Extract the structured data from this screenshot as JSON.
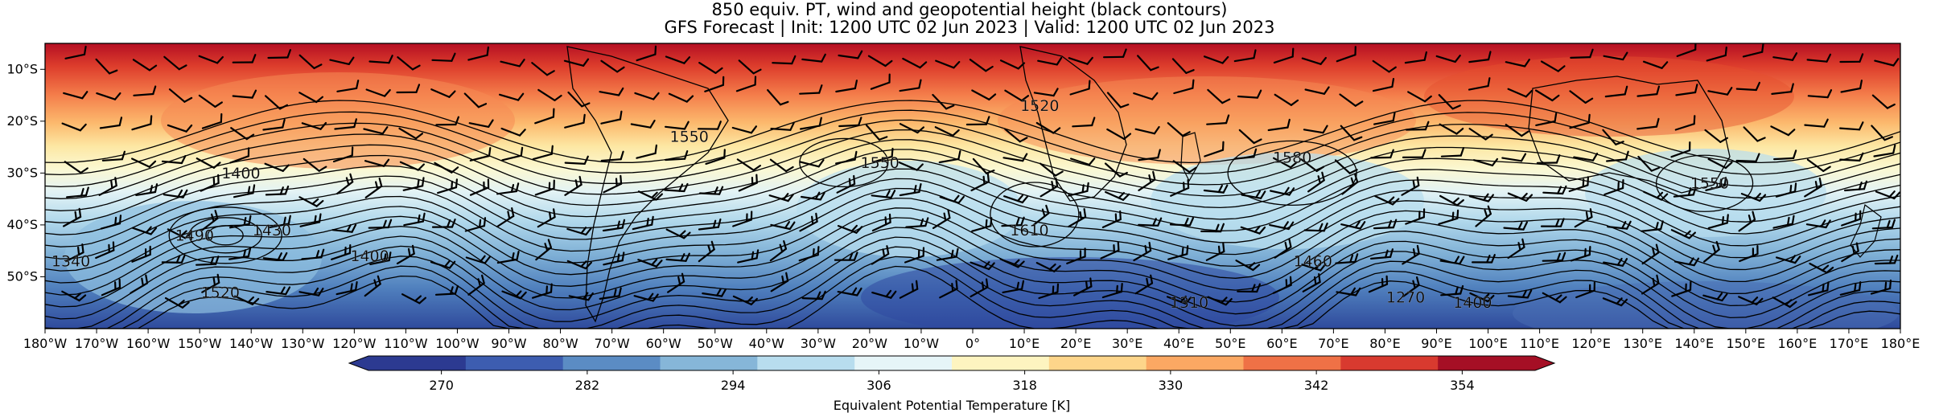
{
  "title": {
    "line1": "850 equiv. PT, wind and geopotential height (black contours)",
    "line2": "GFS Forecast | Init: 1200 UTC 02 Jun 2023 | Valid: 1200 UTC 02 Jun 2023"
  },
  "map": {
    "projection": "PlateCarree",
    "lon_range": [
      -180,
      180
    ],
    "lat_range": [
      -60,
      -5
    ],
    "lat_ticks": [
      "10°S",
      "20°S",
      "30°S",
      "40°S",
      "50°S"
    ],
    "lon_ticks": [
      "180°W",
      "170°W",
      "160°W",
      "150°W",
      "140°W",
      "130°W",
      "120°W",
      "110°W",
      "100°W",
      "90°W",
      "80°W",
      "70°W",
      "60°W",
      "50°W",
      "40°W",
      "30°W",
      "20°W",
      "10°W",
      "0°",
      "10°E",
      "20°E",
      "30°E",
      "40°E",
      "50°E",
      "60°E",
      "70°E",
      "80°E",
      "90°E",
      "100°E",
      "110°E",
      "120°E",
      "130°E",
      "140°E",
      "150°E",
      "160°E",
      "170°E",
      "180°E"
    ],
    "contour_labels": [
      {
        "text": "1400",
        "lon": -142,
        "lat": -31
      },
      {
        "text": "1430",
        "lon": -136,
        "lat": -42
      },
      {
        "text": "1490",
        "lon": -151,
        "lat": -43
      },
      {
        "text": "1340",
        "lon": -175,
        "lat": -48
      },
      {
        "text": "1520",
        "lon": -146,
        "lat": -54
      },
      {
        "text": "1400",
        "lon": -117,
        "lat": -47
      },
      {
        "text": "1550",
        "lon": -55,
        "lat": -24
      },
      {
        "text": "1520",
        "lon": 13,
        "lat": -18
      },
      {
        "text": "1550",
        "lon": -18,
        "lat": -29
      },
      {
        "text": "1610",
        "lon": 11,
        "lat": -42
      },
      {
        "text": "1580",
        "lon": 62,
        "lat": -28
      },
      {
        "text": "1460",
        "lon": 66,
        "lat": -48
      },
      {
        "text": "1310",
        "lon": 42,
        "lat": -56
      },
      {
        "text": "1270",
        "lon": 84,
        "lat": -55
      },
      {
        "text": "1400",
        "lon": 97,
        "lat": -56
      },
      {
        "text": "1550",
        "lon": 143,
        "lat": -33
      }
    ]
  },
  "colorbar": {
    "label": "Equivalent Potential Temperature [K]",
    "ticks": [
      "270",
      "282",
      "294",
      "306",
      "318",
      "330",
      "342",
      "354"
    ],
    "colors": [
      "#2c3a91",
      "#3d5db0",
      "#5b8cc4",
      "#86b6d8",
      "#b8ddee",
      "#e6f5f8",
      "#fdf4c0",
      "#fdd58a",
      "#fba863",
      "#ef7146",
      "#d83a2f",
      "#a50f25"
    ]
  }
}
